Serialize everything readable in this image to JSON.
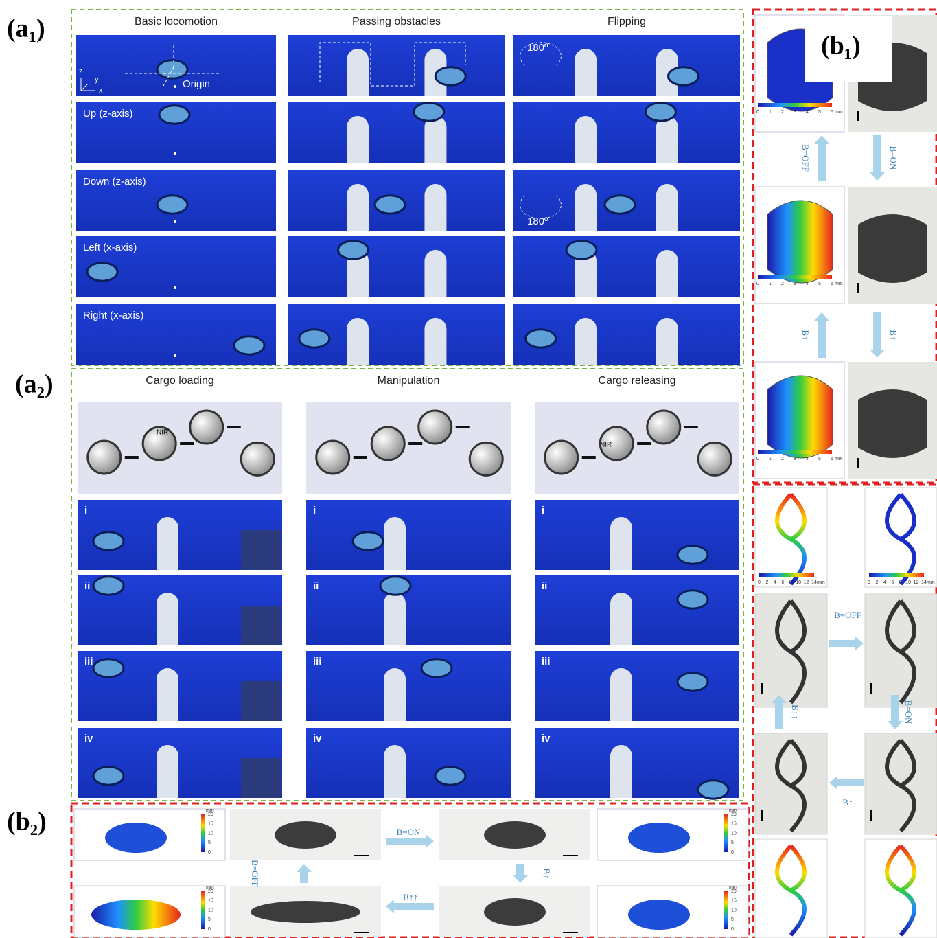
{
  "panels": {
    "a1": "(a₁)",
    "a2": "(a₂)",
    "b1": "(b₁)",
    "b2": "(b₂)"
  },
  "a1": {
    "columns": [
      "Basic locomotion",
      "Passing obstacles",
      "Flipping"
    ],
    "rows": [
      "Up (z-axis)",
      "Down (z-axis)",
      "Left (x-axis)",
      "Right (x-axis)"
    ],
    "origin": "Origin",
    "axes": [
      "z",
      "y",
      "x"
    ],
    "angle": [
      "180º",
      "180º"
    ]
  },
  "a2": {
    "columns": [
      "Cargo loading",
      "Manipulation",
      "Cargo releasing"
    ],
    "nir": [
      "NIR",
      "NIR"
    ],
    "steps": [
      "i",
      "ii",
      "iii",
      "iv"
    ]
  },
  "b1": {
    "arrows": [
      "B=OFF",
      "B=ON",
      "B↑",
      "B↑"
    ],
    "colorbar": [
      "0",
      "1",
      "2",
      "3",
      "4",
      "5",
      "6"
    ],
    "unit": "mm"
  },
  "butterfly": {
    "arrows": [
      "B=OFF",
      "B=ON",
      "B↑↑",
      "B↑"
    ],
    "colorbar": [
      "0",
      "2",
      "4",
      "6",
      "8",
      "10",
      "12",
      "14"
    ],
    "unit": "mm"
  },
  "b2": {
    "arrows": [
      "B=ON",
      "B↑",
      "B↑↑",
      "B=OFF"
    ],
    "colorbar": [
      "0",
      "5",
      "10",
      "15",
      "20"
    ],
    "unit": "mm"
  }
}
